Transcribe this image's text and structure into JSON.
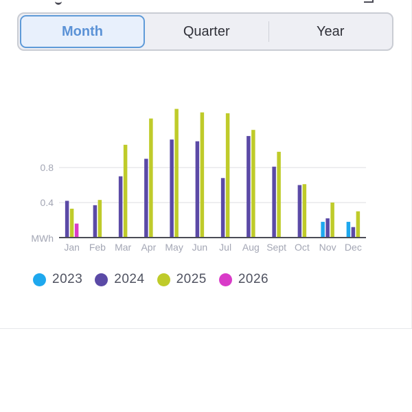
{
  "segmented": {
    "options": [
      "Month",
      "Quarter",
      "Year"
    ],
    "selected": "Month"
  },
  "colors": {
    "2023": "#1ea8ee",
    "2024": "#5b4aa6",
    "2025": "#bfcb2a",
    "2026": "#d93bc8",
    "accent": "#5b92d6"
  },
  "legend": [
    "2023",
    "2024",
    "2025",
    "2026"
  ],
  "chart_data": {
    "type": "bar",
    "ylabel": "MWh",
    "categories": [
      "Jan",
      "Feb",
      "Mar",
      "Apr",
      "May",
      "Jun",
      "Jul",
      "Aug",
      "Sept",
      "Oct",
      "Nov",
      "Dec"
    ],
    "y_ticks": [
      0.4,
      0.8
    ],
    "y_tick_labels": [
      "0.4",
      "0.8"
    ],
    "ylim": [
      0,
      1.6
    ],
    "grid": true,
    "series": [
      {
        "name": "2023",
        "values": [
          null,
          null,
          null,
          null,
          null,
          null,
          null,
          null,
          null,
          null,
          0.18,
          0.18
        ]
      },
      {
        "name": "2024",
        "values": [
          0.42,
          0.37,
          0.7,
          0.9,
          1.12,
          1.1,
          0.68,
          1.16,
          0.81,
          0.6,
          0.22,
          0.12
        ]
      },
      {
        "name": "2025",
        "values": [
          0.33,
          0.43,
          1.06,
          1.36,
          1.47,
          1.43,
          1.42,
          1.23,
          0.98,
          0.61,
          0.4,
          0.3
        ]
      },
      {
        "name": "2026",
        "values": [
          0.16,
          null,
          null,
          null,
          null,
          null,
          null,
          null,
          null,
          null,
          null,
          null
        ]
      }
    ]
  }
}
